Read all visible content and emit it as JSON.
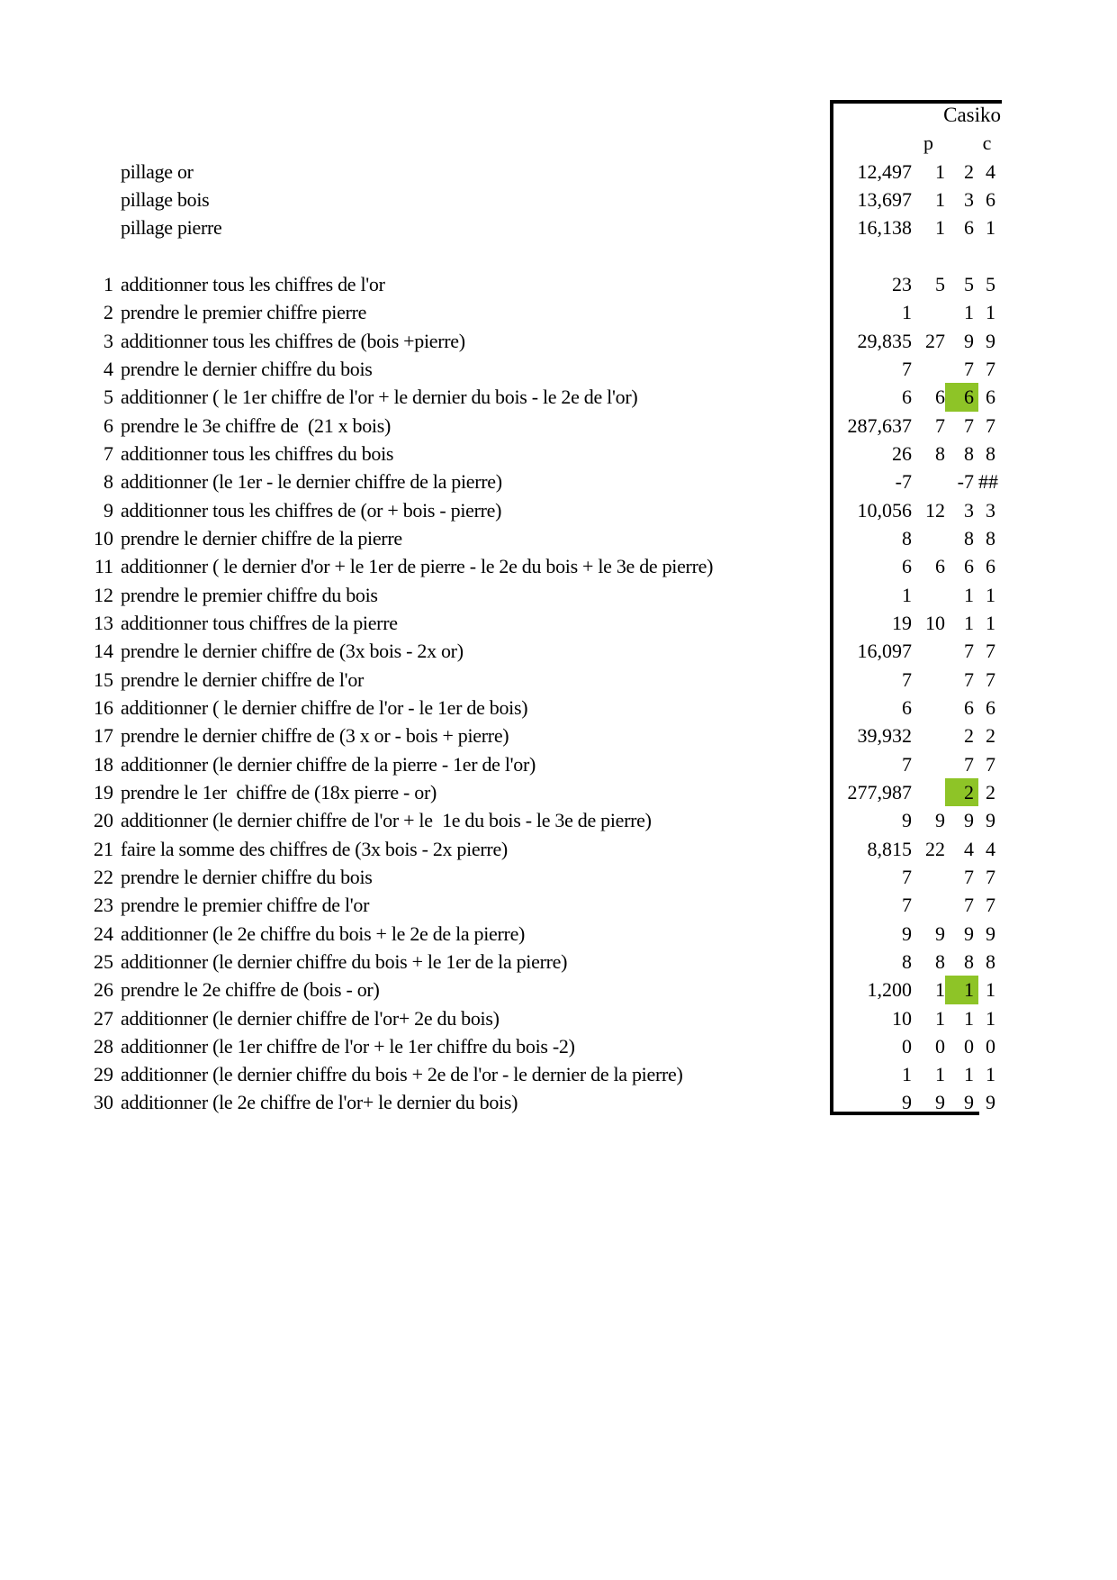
{
  "table": {
    "title": "Casiko",
    "p_header": "p",
    "c_header": "c",
    "highlight_color": "#8ec427",
    "rows": [
      {
        "num": "",
        "text": "pillage or",
        "v1": "12,497",
        "v2": "1",
        "v3": "2",
        "v4": "4",
        "hl": false
      },
      {
        "num": "",
        "text": "pillage bois",
        "v1": "13,697",
        "v2": "1",
        "v3": "3",
        "v4": "6",
        "hl": false
      },
      {
        "num": "",
        "text": "pillage pierre",
        "v1": "16,138",
        "v2": "1",
        "v3": "6",
        "v4": "1",
        "hl": false
      },
      {
        "num": "",
        "text": "",
        "v1": "",
        "v2": "",
        "v3": "",
        "v4": "",
        "hl": false
      },
      {
        "num": "1",
        "text": "additionner tous les chiffres de l'or",
        "v1": "23",
        "v2": "5",
        "v3": "5",
        "v4": "5",
        "hl": false
      },
      {
        "num": "2",
        "text": "prendre le premier chiffre pierre",
        "v1": "1",
        "v2": "",
        "v3": "1",
        "v4": "1",
        "hl": false
      },
      {
        "num": "3",
        "text": "additionner tous les chiffres de (bois +pierre)",
        "v1": "29,835",
        "v2": "27",
        "v3": "9",
        "v4": "9",
        "hl": false
      },
      {
        "num": "4",
        "text": "prendre le dernier chiffre du bois",
        "v1": "7",
        "v2": "",
        "v3": "7",
        "v4": "7",
        "hl": false
      },
      {
        "num": "5",
        "text": "additionner ( le 1er chiffre de l'or + le dernier du bois - le 2e de l'or)",
        "v1": "6",
        "v2": "6",
        "v3": "6",
        "v4": "6",
        "hl": true
      },
      {
        "num": "6",
        "text": "prendre le 3e chiffre de  (21 x bois)",
        "v1": "287,637",
        "v2": "7",
        "v3": "7",
        "v4": "7",
        "hl": false
      },
      {
        "num": "7",
        "text": "additionner tous les chiffres du bois",
        "v1": "26",
        "v2": "8",
        "v3": "8",
        "v4": "8",
        "hl": false
      },
      {
        "num": "8",
        "text": "additionner (le 1er - le dernier chiffre de la pierre)",
        "v1": "-7",
        "v2": "",
        "v3": "-7",
        "v4": "##",
        "hl": false
      },
      {
        "num": "9",
        "text": "additionner tous les chiffres de (or + bois - pierre)",
        "v1": "10,056",
        "v2": "12",
        "v3": "3",
        "v4": "3",
        "hl": false
      },
      {
        "num": "10",
        "text": "prendre le dernier chiffre de la pierre",
        "v1": "8",
        "v2": "",
        "v3": "8",
        "v4": "8",
        "hl": false
      },
      {
        "num": "11",
        "text": "additionner ( le dernier d'or + le 1er de pierre - le 2e du bois + le 3e de pierre)",
        "v1": "6",
        "v2": "6",
        "v3": "6",
        "v4": "6",
        "hl": false
      },
      {
        "num": "12",
        "text": "prendre le premier chiffre du bois",
        "v1": "1",
        "v2": "",
        "v3": "1",
        "v4": "1",
        "hl": false
      },
      {
        "num": "13",
        "text": "additionner tous chiffres de la pierre",
        "v1": "19",
        "v2": "10",
        "v3": "1",
        "v4": "1",
        "hl": false
      },
      {
        "num": "14",
        "text": "prendre le dernier chiffre de (3x bois - 2x or)",
        "v1": "16,097",
        "v2": "",
        "v3": "7",
        "v4": "7",
        "hl": false
      },
      {
        "num": "15",
        "text": "prendre le dernier chiffre de l'or",
        "v1": "7",
        "v2": "",
        "v3": "7",
        "v4": "7",
        "hl": false
      },
      {
        "num": "16",
        "text": "additionner ( le dernier chiffre de l'or - le 1er de bois)",
        "v1": "6",
        "v2": "",
        "v3": "6",
        "v4": "6",
        "hl": false
      },
      {
        "num": "17",
        "text": "prendre le dernier chiffre de (3 x or - bois + pierre)",
        "v1": "39,932",
        "v2": "",
        "v3": "2",
        "v4": "2",
        "hl": false
      },
      {
        "num": "18",
        "text": "additionner (le dernier chiffre de la pierre - 1er de l'or)",
        "v1": "7",
        "v2": "",
        "v3": "7",
        "v4": "7",
        "hl": false
      },
      {
        "num": "19",
        "text": "prendre le 1er  chiffre de (18x pierre - or)",
        "v1": "277,987",
        "v2": "",
        "v3": "2",
        "v4": "2",
        "hl": true
      },
      {
        "num": "20",
        "text": "additionner (le dernier chiffre de l'or + le  1e du bois - le 3e de pierre)",
        "v1": "9",
        "v2": "9",
        "v3": "9",
        "v4": "9",
        "hl": false
      },
      {
        "num": "21",
        "text": "faire la somme des chiffres de (3x bois - 2x pierre)",
        "v1": "8,815",
        "v2": "22",
        "v3": "4",
        "v4": "4",
        "hl": false
      },
      {
        "num": "22",
        "text": "prendre le dernier chiffre du bois",
        "v1": "7",
        "v2": "",
        "v3": "7",
        "v4": "7",
        "hl": false
      },
      {
        "num": "23",
        "text": "prendre le premier chiffre de l'or",
        "v1": "7",
        "v2": "",
        "v3": "7",
        "v4": "7",
        "hl": false
      },
      {
        "num": "24",
        "text": "additionner (le 2e chiffre du bois + le 2e de la pierre)",
        "v1": "9",
        "v2": "9",
        "v3": "9",
        "v4": "9",
        "hl": false
      },
      {
        "num": "25",
        "text": "additionner (le dernier chiffre du bois + le 1er de la pierre)",
        "v1": "8",
        "v2": "8",
        "v3": "8",
        "v4": "8",
        "hl": false
      },
      {
        "num": "26",
        "text": "prendre le 2e chiffre de (bois - or)",
        "v1": "1,200",
        "v2": "1",
        "v3": "1",
        "v4": "1",
        "hl": true
      },
      {
        "num": "27",
        "text": "additionner (le dernier chiffre de l'or+ 2e du bois)",
        "v1": "10",
        "v2": "1",
        "v3": "1",
        "v4": "1",
        "hl": false
      },
      {
        "num": "28",
        "text": "additionner (le 1er chiffre de l'or + le 1er chiffre du bois -2)",
        "v1": "0",
        "v2": "0",
        "v3": "0",
        "v4": "0",
        "hl": false
      },
      {
        "num": "29",
        "text": "additionner (le dernier chiffre du bois + 2e de l'or - le dernier de la pierre)",
        "v1": "1",
        "v2": "1",
        "v3": "1",
        "v4": "1",
        "hl": false
      },
      {
        "num": "30",
        "text": "additionner (le 2e chiffre de l'or+ le dernier du bois)",
        "v1": "9",
        "v2": "9",
        "v3": "9",
        "v4": "9",
        "hl": false
      }
    ]
  }
}
